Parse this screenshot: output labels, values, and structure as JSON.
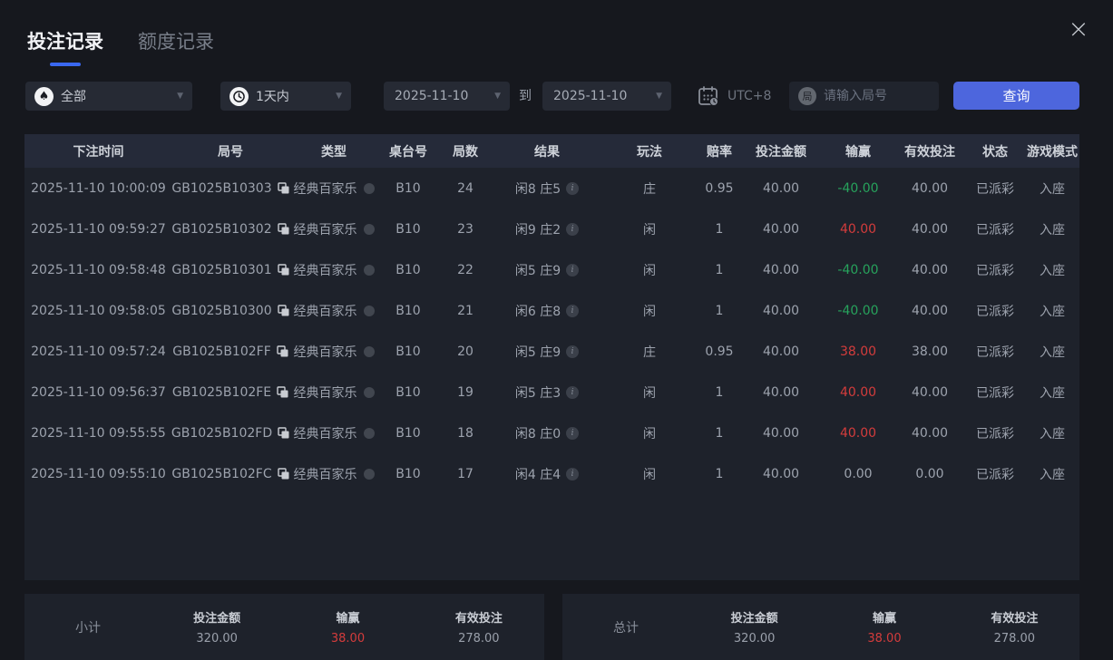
{
  "window": {
    "close_label": "×"
  },
  "tabs": [
    {
      "label": "投注记录",
      "active": true
    },
    {
      "label": "额度记录",
      "active": false
    }
  ],
  "filters": {
    "game_type": {
      "value": "全部",
      "icon": "spade"
    },
    "time_range": {
      "value": "1天内",
      "icon": "clock"
    },
    "date_from": "2025-11-10",
    "to_label": "到",
    "date_to": "2025-11-10",
    "timezone": "UTC+8",
    "round_input_placeholder": "请输入局号",
    "round_icon_char": "局",
    "query_button": "查询",
    "caret": "▼",
    "spade_glyph": "♠"
  },
  "table": {
    "headers": [
      "下注时间",
      "局号",
      "类型",
      "桌台号",
      "局数",
      "结果",
      "玩法",
      "赔率",
      "投注金额",
      "输赢",
      "有效投注",
      "状态",
      "游戏模式"
    ],
    "rows": [
      {
        "time": "2025-11-10 10:00:09",
        "round_id": "GB1025B10303",
        "type": "经典百家乐",
        "table_no": "B10",
        "round_no": "24",
        "result": "闲8 庄5",
        "play": "庄",
        "odds": "0.95",
        "bet": "40.00",
        "win_loss": "-40.00",
        "win_loss_color": "green",
        "valid_bet": "40.00",
        "status": "已派彩",
        "mode": "入座"
      },
      {
        "time": "2025-11-10 09:59:27",
        "round_id": "GB1025B10302",
        "type": "经典百家乐",
        "table_no": "B10",
        "round_no": "23",
        "result": "闲9 庄2",
        "play": "闲",
        "odds": "1",
        "bet": "40.00",
        "win_loss": "40.00",
        "win_loss_color": "red",
        "valid_bet": "40.00",
        "status": "已派彩",
        "mode": "入座"
      },
      {
        "time": "2025-11-10 09:58:48",
        "round_id": "GB1025B10301",
        "type": "经典百家乐",
        "table_no": "B10",
        "round_no": "22",
        "result": "闲5 庄9",
        "play": "闲",
        "odds": "1",
        "bet": "40.00",
        "win_loss": "-40.00",
        "win_loss_color": "green",
        "valid_bet": "40.00",
        "status": "已派彩",
        "mode": "入座"
      },
      {
        "time": "2025-11-10 09:58:05",
        "round_id": "GB1025B10300",
        "type": "经典百家乐",
        "table_no": "B10",
        "round_no": "21",
        "result": "闲6 庄8",
        "play": "闲",
        "odds": "1",
        "bet": "40.00",
        "win_loss": "-40.00",
        "win_loss_color": "green",
        "valid_bet": "40.00",
        "status": "已派彩",
        "mode": "入座"
      },
      {
        "time": "2025-11-10 09:57:24",
        "round_id": "GB1025B102FF",
        "type": "经典百家乐",
        "table_no": "B10",
        "round_no": "20",
        "result": "闲5 庄9",
        "play": "庄",
        "odds": "0.95",
        "bet": "40.00",
        "win_loss": "38.00",
        "win_loss_color": "red",
        "valid_bet": "38.00",
        "status": "已派彩",
        "mode": "入座"
      },
      {
        "time": "2025-11-10 09:56:37",
        "round_id": "GB1025B102FE",
        "type": "经典百家乐",
        "table_no": "B10",
        "round_no": "19",
        "result": "闲5 庄3",
        "play": "闲",
        "odds": "1",
        "bet": "40.00",
        "win_loss": "40.00",
        "win_loss_color": "red",
        "valid_bet": "40.00",
        "status": "已派彩",
        "mode": "入座"
      },
      {
        "time": "2025-11-10 09:55:55",
        "round_id": "GB1025B102FD",
        "type": "经典百家乐",
        "table_no": "B10",
        "round_no": "18",
        "result": "闲8 庄0",
        "play": "闲",
        "odds": "1",
        "bet": "40.00",
        "win_loss": "40.00",
        "win_loss_color": "red",
        "valid_bet": "40.00",
        "status": "已派彩",
        "mode": "入座"
      },
      {
        "time": "2025-11-10 09:55:10",
        "round_id": "GB1025B102FC",
        "type": "经典百家乐",
        "table_no": "B10",
        "round_no": "17",
        "result": "闲4 庄4",
        "play": "闲",
        "odds": "1",
        "bet": "40.00",
        "win_loss": "0.00",
        "win_loss_color": "neutral",
        "valid_bet": "0.00",
        "status": "已派彩",
        "mode": "入座"
      }
    ]
  },
  "summaries": [
    {
      "label": "小计",
      "items": [
        {
          "label": "投注金额",
          "value": "320.00",
          "color": "neutral"
        },
        {
          "label": "输赢",
          "value": "38.00",
          "color": "red"
        },
        {
          "label": "有效投注",
          "value": "278.00",
          "color": "neutral"
        }
      ]
    },
    {
      "label": "总计",
      "items": [
        {
          "label": "投注金额",
          "value": "320.00",
          "color": "neutral"
        },
        {
          "label": "输赢",
          "value": "38.00",
          "color": "red"
        },
        {
          "label": "有效投注",
          "value": "278.00",
          "color": "neutral"
        }
      ]
    }
  ],
  "colors": {
    "accent_blue": "#4d66dd",
    "tab_underline_blue": "#3a68f0",
    "win_red": "#d43c3c",
    "loss_green": "#27a35c",
    "panel_bg": "#1e222b",
    "header_bg": "#252a39",
    "page_bg": "#16181e"
  }
}
